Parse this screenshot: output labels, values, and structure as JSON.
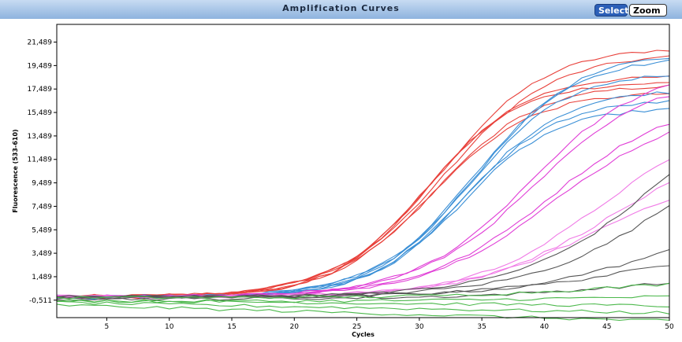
{
  "header": {
    "title": "Amplification Curves",
    "select_label": "Select",
    "zoom_label": "Zoom"
  },
  "chart_data": {
    "type": "line",
    "title": "Amplification Curves",
    "xlabel": "Cycles",
    "ylabel": "Fluorescence (533-610)",
    "xlim": [
      1,
      50
    ],
    "ylim": [
      -2000,
      23000
    ],
    "x_ticks": [
      5,
      10,
      15,
      20,
      25,
      30,
      35,
      40,
      45,
      50
    ],
    "y_ticks": [
      -511,
      1489,
      3489,
      5489,
      7489,
      9489,
      11489,
      13489,
      15489,
      17489,
      19489,
      21489
    ],
    "y_tick_labels": [
      "-0,511",
      "1,489",
      "3,489",
      "5,489",
      "7,489",
      "9,489",
      "11,489",
      "13,489",
      "15,489",
      "17,489",
      "19,489",
      "21,489"
    ],
    "x_tick_labels": [
      "5",
      "10",
      "15",
      "20",
      "25",
      "30",
      "35",
      "40",
      "45",
      "50"
    ],
    "grid": false,
    "series": [
      {
        "color": "#e8403a",
        "curve": {
          "baseline": -200,
          "plateau": 21300,
          "midpoint": 31.8,
          "slope": 0.24
        }
      },
      {
        "color": "#e8403a",
        "curve": {
          "baseline": -250,
          "plateau": 20800,
          "midpoint": 32.0,
          "slope": 0.23
        }
      },
      {
        "color": "#e8403a",
        "curve": {
          "baseline": -150,
          "plateau": 18800,
          "midpoint": 30.8,
          "slope": 0.26
        }
      },
      {
        "color": "#e8403a",
        "curve": {
          "baseline": -300,
          "plateau": 18400,
          "midpoint": 30.5,
          "slope": 0.27
        }
      },
      {
        "color": "#e8403a",
        "curve": {
          "baseline": -200,
          "plateau": 18100,
          "midpoint": 31.3,
          "slope": 0.25
        }
      },
      {
        "color": "#e8403a",
        "curve": {
          "baseline": -250,
          "plateau": 17500,
          "midpoint": 31.0,
          "slope": 0.25
        }
      },
      {
        "color": "#3a8fd6",
        "curve": {
          "baseline": -200,
          "plateau": 20800,
          "midpoint": 34.6,
          "slope": 0.25
        }
      },
      {
        "color": "#3a8fd6",
        "curve": {
          "baseline": -250,
          "plateau": 20500,
          "midpoint": 34.3,
          "slope": 0.25
        }
      },
      {
        "color": "#3a8fd6",
        "curve": {
          "baseline": -200,
          "plateau": 19200,
          "midpoint": 34.1,
          "slope": 0.26
        }
      },
      {
        "color": "#3a8fd6",
        "curve": {
          "baseline": -300,
          "plateau": 17800,
          "midpoint": 33.9,
          "slope": 0.26
        }
      },
      {
        "color": "#3a8fd6",
        "curve": {
          "baseline": -200,
          "plateau": 16800,
          "midpoint": 33.6,
          "slope": 0.27
        }
      },
      {
        "color": "#3a8fd6",
        "curve": {
          "baseline": -250,
          "plateau": 16200,
          "midpoint": 33.5,
          "slope": 0.27
        }
      },
      {
        "color": "#e03cd6",
        "curve": {
          "baseline": -200,
          "plateau": 19500,
          "midpoint": 38.8,
          "slope": 0.22
        }
      },
      {
        "color": "#e03cd6",
        "curve": {
          "baseline": -250,
          "plateau": 19000,
          "midpoint": 39.2,
          "slope": 0.21
        }
      },
      {
        "color": "#e03cd6",
        "curve": {
          "baseline": -200,
          "plateau": 17000,
          "midpoint": 40.5,
          "slope": 0.2
        }
      },
      {
        "color": "#e03cd6",
        "curve": {
          "baseline": -300,
          "plateau": 16500,
          "midpoint": 40.8,
          "slope": 0.19
        }
      },
      {
        "color": "#f07ae6",
        "curve": {
          "baseline": -200,
          "plateau": 15500,
          "midpoint": 44.5,
          "slope": 0.2
        }
      },
      {
        "color": "#f07ae6",
        "curve": {
          "baseline": -250,
          "plateau": 14000,
          "midpoint": 45.5,
          "slope": 0.18
        }
      },
      {
        "color": "#f07ae6",
        "curve": {
          "baseline": -200,
          "plateau": 11000,
          "midpoint": 44.0,
          "slope": 0.19
        }
      },
      {
        "color": "#555555",
        "curve": {
          "baseline": -250,
          "plateau": 22000,
          "midpoint": 50.5,
          "slope": 0.17
        }
      },
      {
        "color": "#555555",
        "curve": {
          "baseline": -200,
          "plateau": 17000,
          "midpoint": 51.0,
          "slope": 0.17
        }
      },
      {
        "color": "#555555",
        "curve": {
          "baseline": -300,
          "plateau": 8000,
          "midpoint": 50.0,
          "slope": 0.16
        }
      },
      {
        "color": "#555555",
        "curve": {
          "baseline": -250,
          "plateau": 5000,
          "midpoint": 48.5,
          "slope": 0.15
        }
      },
      {
        "color": "#555555",
        "curve": {
          "baseline": -400,
          "plateau": 2200,
          "midpoint": 47.0,
          "slope": 0.15
        }
      },
      {
        "color": "#4bb84b",
        "curve": {
          "baseline": -300,
          "plateau": 1800,
          "midpoint": 46.0,
          "slope": 0.15
        }
      },
      {
        "color": "#4bb84b",
        "curve": {
          "baseline": -500,
          "plateau": 0,
          "midpoint": 30,
          "slope": 0.2,
          "drift": -10
        }
      },
      {
        "color": "#4bb84b",
        "curve": {
          "baseline": -700,
          "plateau": 0,
          "midpoint": 30,
          "slope": 0.2,
          "drift": -18
        }
      },
      {
        "color": "#4bb84b",
        "curve": {
          "baseline": -600,
          "plateau": 500,
          "midpoint": 42,
          "slope": 0.15
        }
      },
      {
        "color": "#4bb84b",
        "curve": {
          "baseline": -900,
          "plateau": 0,
          "midpoint": 30,
          "slope": 0.2,
          "drift": -28
        }
      }
    ]
  }
}
